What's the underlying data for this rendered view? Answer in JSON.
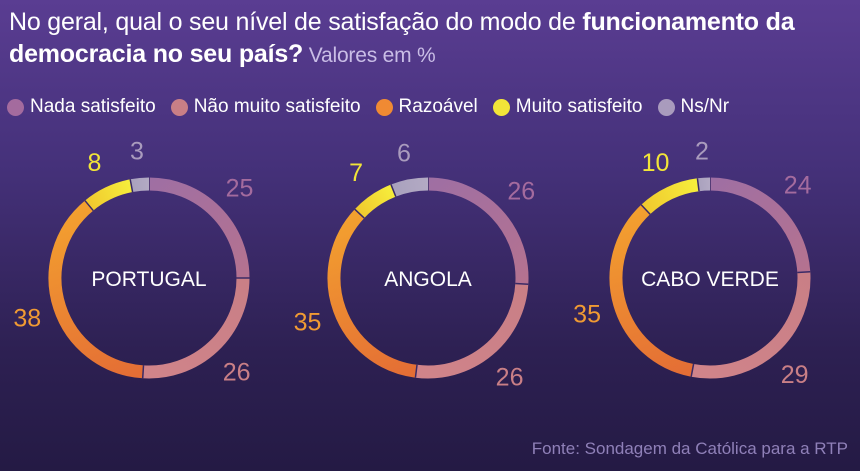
{
  "title": {
    "plain": "No geral, qual o seu nível de satisfação do modo de ",
    "bold_1": "funcionamento da",
    "bold_2": "democracia no seu país?",
    "unit": " Valores em %"
  },
  "legend": [
    {
      "label": "Nada satisfeito",
      "color": "#a46b9e"
    },
    {
      "label": "Não muito satisfeito",
      "color": "#c97f86"
    },
    {
      "label": "Razoável",
      "color": "#f08a33"
    },
    {
      "label": "Muito satisfeito",
      "color": "#f2e538"
    },
    {
      "label": "Ns/Nr",
      "color": "#a99bbd"
    }
  ],
  "chart_data": [
    {
      "type": "pie",
      "title": "PORTUGAL",
      "categories": [
        "Nada satisfeito",
        "Não muito satisfeito",
        "Razoável",
        "Muito satisfeito",
        "Ns/Nr"
      ],
      "values": [
        25,
        26,
        38,
        8,
        3
      ],
      "value_labels": [
        "25",
        "26",
        "38",
        "8",
        "3"
      ]
    },
    {
      "type": "pie",
      "title": "ANGOLA",
      "categories": [
        "Nada satisfeito",
        "Não muito satisfeito",
        "Razoável",
        "Muito satisfeito",
        "Ns/Nr"
      ],
      "values": [
        26,
        26,
        35,
        7,
        6
      ],
      "value_labels": [
        "26",
        "26",
        "35",
        "7",
        "6"
      ]
    },
    {
      "type": "pie",
      "title": "CABO VERDE",
      "categories": [
        "Nada satisfeito",
        "Não muito satisfeito",
        "Razoável",
        "Muito satisfeito",
        "Ns/Nr"
      ],
      "values": [
        24,
        29,
        35,
        10,
        2
      ],
      "value_labels": [
        "24",
        "29",
        "35",
        "10",
        "2"
      ]
    }
  ],
  "source": "Fonte: Sondagem da Católica para a RTP"
}
